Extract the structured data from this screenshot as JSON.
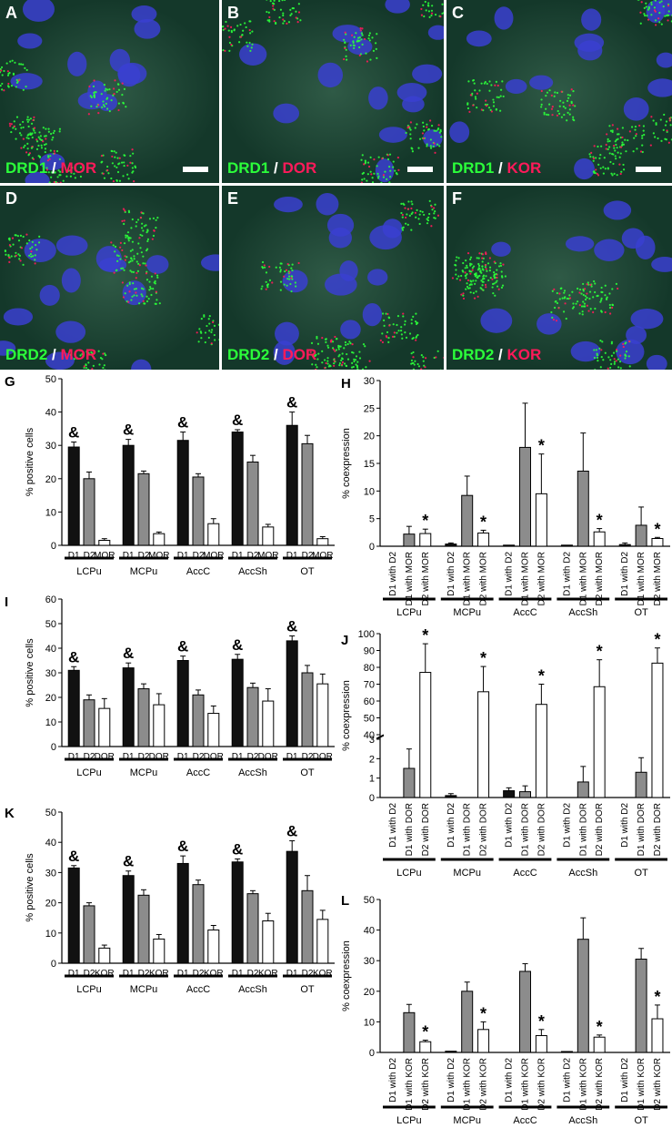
{
  "micrographs": [
    {
      "id": "A",
      "probe": "DRD1",
      "partner": "MOR",
      "scalebar": true
    },
    {
      "id": "B",
      "probe": "DRD1",
      "partner": "DOR",
      "scalebar": true
    },
    {
      "id": "C",
      "probe": "DRD1",
      "partner": "KOR",
      "scalebar": true
    },
    {
      "id": "D",
      "probe": "DRD2",
      "partner": "MOR",
      "scalebar": false
    },
    {
      "id": "E",
      "probe": "DRD2",
      "partner": "DOR",
      "scalebar": false
    },
    {
      "id": "F",
      "probe": "DRD2",
      "partner": "KOR",
      "scalebar": false
    }
  ],
  "separator": "/",
  "regions": [
    "LCPu",
    "MCPu",
    "AccC",
    "AccSh",
    "OT"
  ],
  "colors": {
    "d1": "#111111",
    "d2": "#8c8c8c",
    "opioid": "#ffffff",
    "nuclei": "#3a3fd0",
    "green": "#2bff3a",
    "red": "#ff1a5a"
  },
  "chart_data": [
    {
      "panel": "G",
      "type": "bar",
      "ylabel": "% positive cells",
      "ylim": [
        0,
        50
      ],
      "yticks": [
        0,
        10,
        20,
        30,
        40,
        50
      ],
      "bar_labels": [
        "D1",
        "D2",
        "MOR"
      ],
      "marker": "&",
      "series": [
        {
          "values": [
            29.5,
            20,
            1.5
          ]
        },
        {
          "values": [
            30,
            21.5,
            3.5
          ]
        },
        {
          "values": [
            31.5,
            20.5,
            6.5
          ]
        },
        {
          "values": [
            34,
            25,
            5.5
          ]
        },
        {
          "values": [
            36,
            30.5,
            2
          ]
        }
      ],
      "errors": [
        [
          1.5,
          2,
          0.5
        ],
        [
          1.8,
          0.8,
          0.5
        ],
        [
          2.5,
          1,
          1.5
        ],
        [
          0.7,
          2,
          0.8
        ],
        [
          4,
          2.5,
          0.6
        ]
      ]
    },
    {
      "panel": "H",
      "type": "bar",
      "ylabel": "% coexpression",
      "ylim": [
        0,
        30
      ],
      "yticks": [
        0,
        5,
        10,
        15,
        20,
        25,
        30
      ],
      "bar_labels": [
        "D1 with D2",
        "D1 with MOR",
        "D2 with MOR"
      ],
      "marker": "*",
      "series": [
        {
          "values": [
            0,
            2.2,
            2.3
          ]
        },
        {
          "values": [
            0.4,
            9.2,
            2.4
          ]
        },
        {
          "values": [
            0.2,
            17.9,
            9.5
          ]
        },
        {
          "values": [
            0.2,
            13.6,
            2.6
          ]
        },
        {
          "values": [
            0.3,
            3.8,
            1.4
          ]
        }
      ],
      "errors": [
        [
          0,
          1.4,
          0.8
        ],
        [
          0.2,
          3.5,
          0.5
        ],
        [
          0,
          8,
          7.2
        ],
        [
          0,
          6.9,
          0.6
        ],
        [
          0.3,
          3.3,
          0.2
        ]
      ]
    },
    {
      "panel": "I",
      "type": "bar",
      "ylabel": "% positive cells",
      "ylim": [
        0,
        60
      ],
      "yticks": [
        0,
        10,
        20,
        30,
        40,
        50,
        60
      ],
      "bar_labels": [
        "D1",
        "D2",
        "DOR"
      ],
      "marker": "&",
      "series": [
        {
          "values": [
            31,
            19,
            15.5
          ]
        },
        {
          "values": [
            32,
            23.5,
            17
          ]
        },
        {
          "values": [
            35,
            21,
            13.5
          ]
        },
        {
          "values": [
            35.5,
            24,
            18.5
          ]
        },
        {
          "values": [
            43,
            30,
            25.5
          ]
        }
      ],
      "errors": [
        [
          1.5,
          2,
          4
        ],
        [
          2,
          2,
          4.5
        ],
        [
          1.8,
          2,
          3
        ],
        [
          2,
          1.8,
          5
        ],
        [
          2,
          3,
          4
        ]
      ]
    },
    {
      "panel": "J",
      "type": "bar",
      "ylabel": "% coexpression",
      "ylim": [
        0,
        100
      ],
      "axis_break": [
        3,
        40
      ],
      "yticks": [
        0,
        1,
        2,
        3,
        40,
        50,
        60,
        70,
        80,
        90,
        100
      ],
      "bar_labels": [
        "D1 with D2",
        "D1 with DOR",
        "D2 with DOR"
      ],
      "marker": "*",
      "series": [
        {
          "values": [
            0,
            1.5,
            77
          ]
        },
        {
          "values": [
            0.1,
            0,
            65.5
          ]
        },
        {
          "values": [
            0.35,
            0.3,
            58
          ]
        },
        {
          "values": [
            0,
            0.8,
            68.5
          ]
        },
        {
          "values": [
            0,
            1.3,
            82.5
          ]
        }
      ],
      "errors": [
        [
          0,
          1,
          17
        ],
        [
          0.1,
          0,
          15
        ],
        [
          0.15,
          0.3,
          12
        ],
        [
          0,
          0.8,
          16
        ],
        [
          0,
          0.75,
          9
        ]
      ]
    },
    {
      "panel": "K",
      "type": "bar",
      "ylabel": "% positive cells",
      "ylim": [
        0,
        50
      ],
      "yticks": [
        0,
        10,
        20,
        30,
        40,
        50
      ],
      "bar_labels": [
        "D1",
        "D2",
        "KOR"
      ],
      "marker": "&",
      "series": [
        {
          "values": [
            31.5,
            19,
            5
          ]
        },
        {
          "values": [
            29,
            22.5,
            8
          ]
        },
        {
          "values": [
            33,
            26,
            11
          ]
        },
        {
          "values": [
            33.5,
            23,
            14
          ]
        },
        {
          "values": [
            37,
            24,
            14.5
          ]
        }
      ],
      "errors": [
        [
          0.8,
          1,
          1
        ],
        [
          1.5,
          1.8,
          1.5
        ],
        [
          2.5,
          1.5,
          1.5
        ],
        [
          1,
          1,
          2.5
        ],
        [
          3.5,
          5,
          3
        ]
      ]
    },
    {
      "panel": "L",
      "type": "bar",
      "ylabel": "% coexpression",
      "ylim": [
        0,
        50
      ],
      "yticks": [
        0,
        10,
        20,
        30,
        40,
        50
      ],
      "bar_labels": [
        "D1 with D2",
        "D1 with KOR",
        "D2 with KOR"
      ],
      "marker": "*",
      "series": [
        {
          "values": [
            0,
            13,
            3.5
          ]
        },
        {
          "values": [
            0.4,
            20,
            7.5
          ]
        },
        {
          "values": [
            0,
            26.5,
            5.5
          ]
        },
        {
          "values": [
            0.3,
            37,
            5
          ]
        },
        {
          "values": [
            0,
            30.5,
            11
          ]
        }
      ],
      "errors": [
        [
          0,
          2.7,
          0.5
        ],
        [
          0,
          3,
          2.5
        ],
        [
          0,
          2.5,
          2
        ],
        [
          0,
          7,
          0.7
        ],
        [
          0,
          3.5,
          4.5
        ]
      ]
    }
  ]
}
